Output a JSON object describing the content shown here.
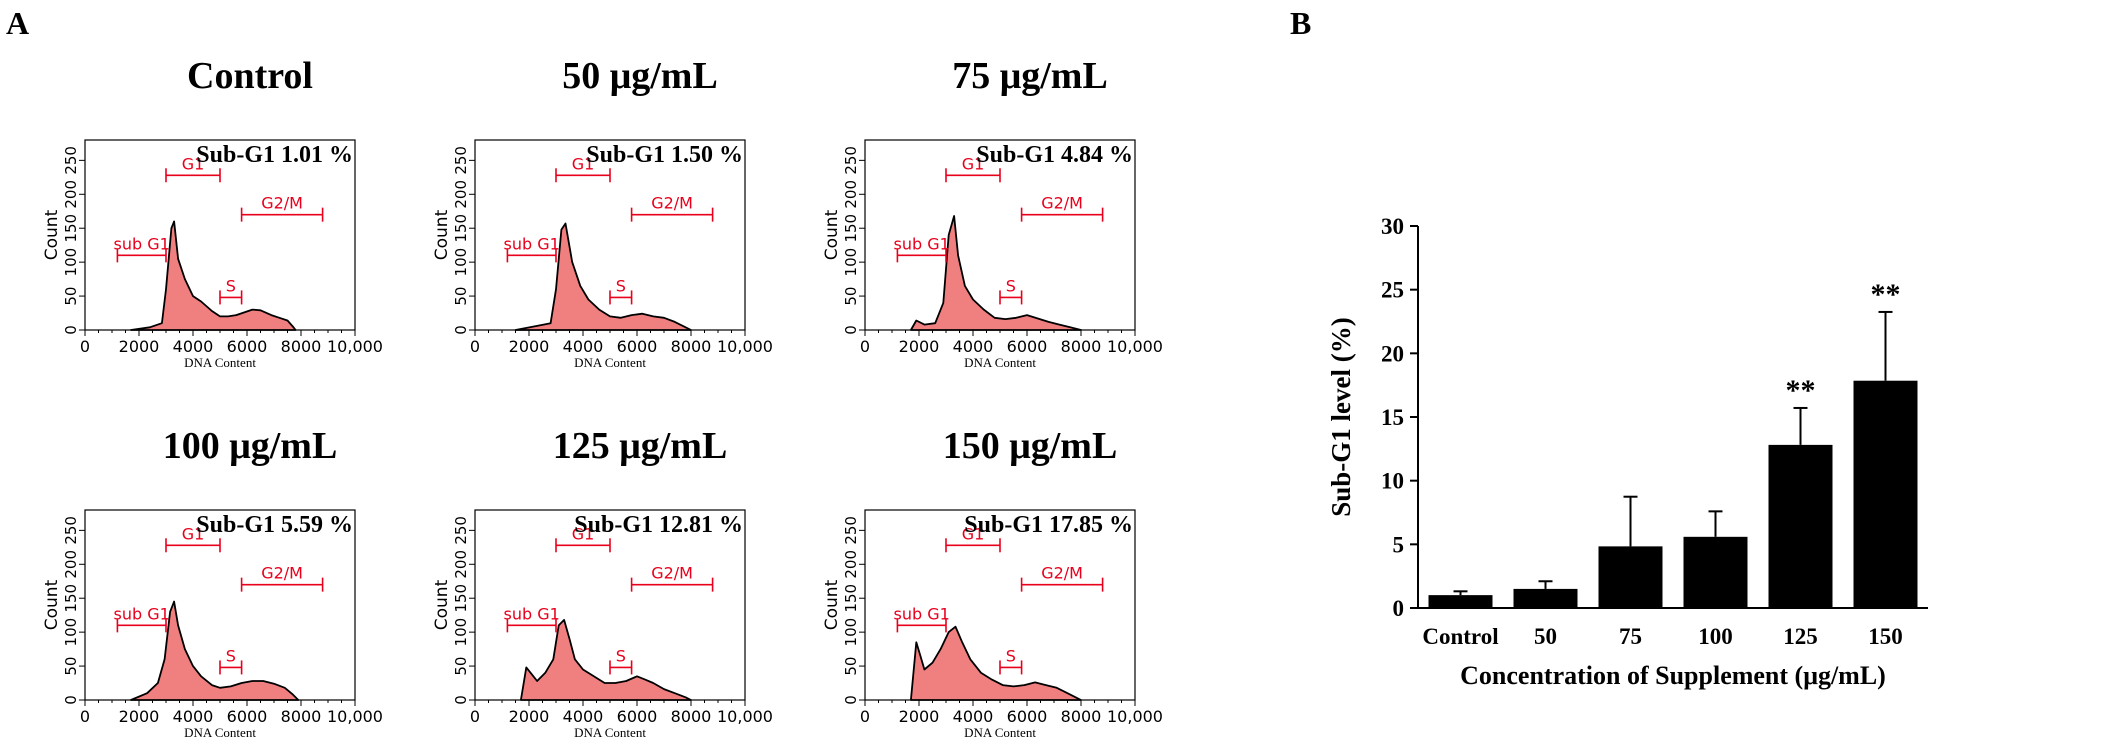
{
  "panel_a_label": "A",
  "panel_b_label": "B",
  "histograms": [
    {
      "title": "Control",
      "subg1_text": "Sub-G1 1.01 %"
    },
    {
      "title": "50 μg/mL",
      "subg1_text": "Sub-G1 1.50 %"
    },
    {
      "title": "75 μg/mL",
      "subg1_text": "Sub-G1 4.84 %"
    },
    {
      "title": "100 μg/mL",
      "subg1_text": "Sub-G1 5.59 %"
    },
    {
      "title": "125 μg/mL",
      "subg1_text": "Sub-G1 12.81 %"
    },
    {
      "title": "150 μg/mL",
      "subg1_text": "Sub-G1 17.85 %"
    }
  ],
  "histogram_axes": {
    "xlabel": "DNA Content",
    "ylabel": "Count",
    "x_ticks": [
      "0",
      "2000",
      "4000",
      "6000",
      "8000",
      "10,000"
    ],
    "y_ticks": [
      "0",
      "50",
      "100",
      "150",
      "200",
      "250"
    ],
    "gates": {
      "sub_g1": "sub G1",
      "g1": "G1",
      "s": "S",
      "g2m": "G2/M"
    },
    "fill_color": "#f08080",
    "gate_color": "#e8001c"
  },
  "chart_data": [
    {
      "type": "area",
      "title": "Control",
      "xlabel": "DNA Content",
      "ylabel": "Count",
      "xlim": [
        0,
        10000
      ],
      "ylim": [
        0,
        280
      ],
      "annotation": "Sub-G1 1.01 %",
      "x": [
        1700,
        2400,
        2850,
        3000,
        3200,
        3300,
        3450,
        3700,
        4000,
        4300,
        4700,
        5000,
        5300,
        5600,
        5900,
        6200,
        6500,
        6900,
        7200,
        7500,
        7700,
        7800
      ],
      "y": [
        0,
        4,
        10,
        60,
        150,
        160,
        105,
        75,
        50,
        42,
        28,
        20,
        20,
        22,
        26,
        30,
        29,
        22,
        18,
        14,
        5,
        0
      ]
    },
    {
      "type": "area",
      "title": "50 μg/mL",
      "xlabel": "DNA Content",
      "ylabel": "Count",
      "xlim": [
        0,
        10000
      ],
      "ylim": [
        0,
        280
      ],
      "annotation": "Sub-G1 1.50 %",
      "x": [
        1500,
        2300,
        2800,
        3000,
        3200,
        3350,
        3600,
        3900,
        4200,
        4600,
        5000,
        5400,
        5800,
        6200,
        6600,
        7000,
        7400,
        7800,
        8000
      ],
      "y": [
        0,
        6,
        10,
        60,
        148,
        157,
        100,
        65,
        45,
        30,
        20,
        18,
        22,
        24,
        20,
        18,
        12,
        4,
        0
      ]
    },
    {
      "type": "area",
      "title": "75 μg/mL",
      "xlabel": "DNA Content",
      "ylabel": "Count",
      "xlim": [
        0,
        10000
      ],
      "ylim": [
        0,
        280
      ],
      "annotation": "Sub-G1 4.84 %",
      "x": [
        1700,
        1900,
        2200,
        2600,
        2900,
        3100,
        3300,
        3450,
        3700,
        4000,
        4400,
        4800,
        5200,
        5600,
        6000,
        6400,
        6800,
        7200,
        7600,
        8000
      ],
      "y": [
        0,
        14,
        8,
        10,
        40,
        140,
        168,
        110,
        65,
        45,
        30,
        18,
        16,
        18,
        22,
        17,
        12,
        8,
        4,
        0
      ]
    },
    {
      "type": "area",
      "title": "100 μg/mL",
      "xlabel": "DNA Content",
      "ylabel": "Count",
      "xlim": [
        0,
        10000
      ],
      "ylim": [
        0,
        280
      ],
      "annotation": "Sub-G1 5.59 %",
      "x": [
        1700,
        2300,
        2700,
        2950,
        3150,
        3300,
        3450,
        3700,
        4000,
        4300,
        4700,
        5000,
        5400,
        5800,
        6200,
        6600,
        7000,
        7400,
        7700,
        7900
      ],
      "y": [
        0,
        10,
        25,
        60,
        130,
        145,
        110,
        75,
        50,
        35,
        22,
        18,
        20,
        25,
        28,
        28,
        24,
        18,
        8,
        0
      ]
    },
    {
      "type": "area",
      "title": "125 μg/mL",
      "xlabel": "DNA Content",
      "ylabel": "Count",
      "xlim": [
        0,
        10000
      ],
      "ylim": [
        0,
        280
      ],
      "annotation": "Sub-G1 12.81 %",
      "x": [
        1700,
        1900,
        2100,
        2300,
        2600,
        2900,
        3100,
        3300,
        3500,
        3700,
        4000,
        4400,
        4800,
        5200,
        5600,
        6000,
        6300,
        6600,
        7000,
        7400,
        7800,
        8000
      ],
      "y": [
        0,
        48,
        38,
        28,
        40,
        60,
        110,
        118,
        90,
        60,
        45,
        35,
        25,
        25,
        28,
        35,
        30,
        25,
        16,
        10,
        4,
        0
      ]
    },
    {
      "type": "area",
      "title": "150 μg/mL",
      "xlabel": "DNA Content",
      "ylabel": "Count",
      "xlim": [
        0,
        10000
      ],
      "ylim": [
        0,
        280
      ],
      "annotation": "Sub-G1 17.85 %",
      "x": [
        1700,
        1900,
        2050,
        2200,
        2500,
        2800,
        3100,
        3350,
        3600,
        3900,
        4300,
        4700,
        5100,
        5500,
        5900,
        6300,
        6700,
        7100,
        7500,
        7800,
        8000
      ],
      "y": [
        0,
        85,
        65,
        45,
        55,
        75,
        100,
        108,
        85,
        60,
        40,
        30,
        22,
        20,
        22,
        26,
        22,
        18,
        10,
        4,
        0
      ]
    },
    {
      "type": "bar",
      "title": "",
      "xlabel": "Concentration of Supplement (μg/mL)",
      "ylabel": "Sub-G1 level (%)",
      "categories": [
        "Control",
        "50",
        "75",
        "100",
        "125",
        "150"
      ],
      "values": [
        1.01,
        1.5,
        4.84,
        5.59,
        12.81,
        17.85
      ],
      "errors": [
        0.3,
        0.6,
        3.9,
        2.0,
        2.9,
        5.4
      ],
      "significance": [
        "",
        "",
        "",
        "",
        "**",
        "**"
      ],
      "ylim": [
        0,
        30
      ],
      "y_ticks": [
        "0",
        "5",
        "10",
        "15",
        "20",
        "25",
        "30"
      ],
      "bar_color": "#000000"
    }
  ]
}
